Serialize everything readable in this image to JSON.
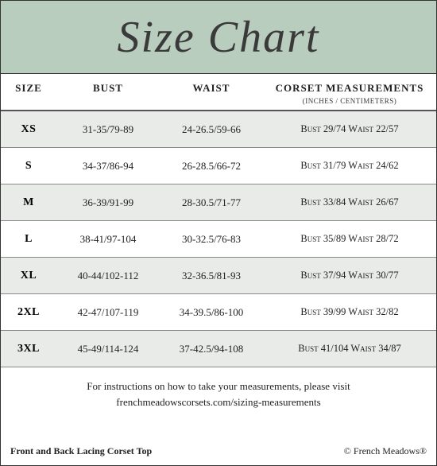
{
  "title": "Size Chart",
  "colors": {
    "header_bg": "#b9cdbf",
    "alt_row_bg": "#e9ebe9",
    "border": "#333333",
    "row_border": "#888888",
    "text": "#222222"
  },
  "columns": {
    "size": "SIZE",
    "bust": "BUST",
    "waist": "WAIST",
    "corset": "CORSET MEASUREMENTS",
    "corset_sub": "(INCHES / CENTIMETERS)"
  },
  "rows": [
    {
      "size": "XS",
      "bust": "31-35/79-89",
      "waist": "24-26.5/59-66",
      "corset": "Bust 29/74 Waist 22/57"
    },
    {
      "size": "S",
      "bust": "34-37/86-94",
      "waist": "26-28.5/66-72",
      "corset": "Bust 31/79 Waist 24/62"
    },
    {
      "size": "M",
      "bust": "36-39/91-99",
      "waist": "28-30.5/71-77",
      "corset": "Bust 33/84 Waist 26/67"
    },
    {
      "size": "L",
      "bust": "38-41/97-104",
      "waist": "30-32.5/76-83",
      "corset": "Bust 35/89 Waist 28/72"
    },
    {
      "size": "XL",
      "bust": "40-44/102-112",
      "waist": "32-36.5/81-93",
      "corset": "Bust 37/94 Waist 30/77"
    },
    {
      "size": "2XL",
      "bust": "42-47/107-119",
      "waist": "34-39.5/86-100",
      "corset": "Bust 39/99 Waist 32/82"
    },
    {
      "size": "3XL",
      "bust": "45-49/114-124",
      "waist": "37-42.5/94-108",
      "corset": "Bust 41/104 Waist 34/87"
    }
  ],
  "footer": {
    "instructions_line1": "For instructions on how to take your measurements, please visit",
    "instructions_line2": "frenchmeadowscorsets.com/sizing-measurements",
    "product_name": "Front and Back Lacing Corset Top",
    "copyright": "© French Meadows®"
  }
}
